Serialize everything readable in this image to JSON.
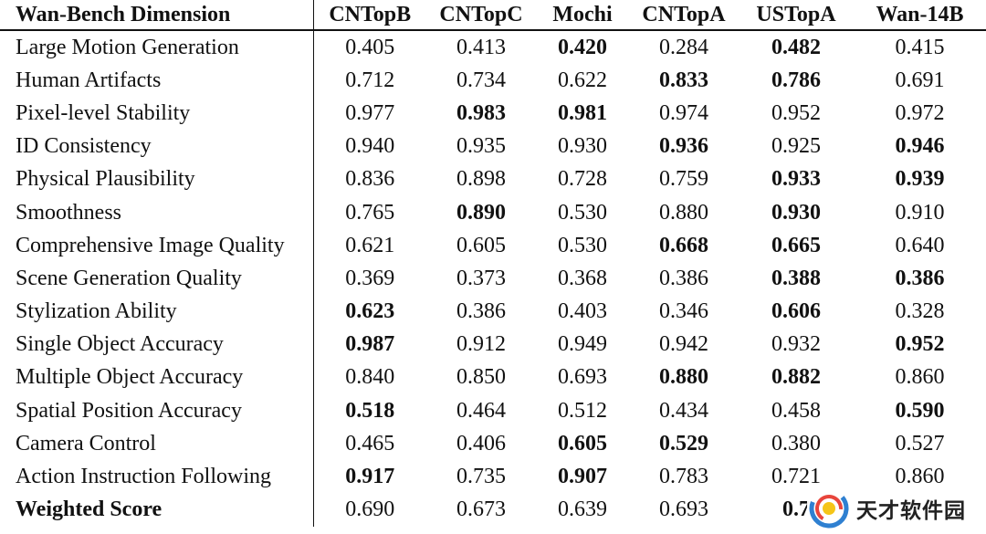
{
  "table": {
    "headers": [
      "Wan-Bench Dimension",
      "CNTopB",
      "CNTopC",
      "Mochi",
      "CNTopA",
      "USTopA",
      "Wan-14B"
    ],
    "rows": [
      {
        "dimension": "Large Motion Generation",
        "values": [
          "0.405",
          "0.413",
          "0.420",
          "0.284",
          "0.482",
          "0.415"
        ],
        "bold": [
          false,
          false,
          true,
          false,
          true,
          false
        ]
      },
      {
        "dimension": "Human Artifacts",
        "values": [
          "0.712",
          "0.734",
          "0.622",
          "0.833",
          "0.786",
          "0.691"
        ],
        "bold": [
          false,
          false,
          false,
          true,
          true,
          false
        ]
      },
      {
        "dimension": "Pixel-level Stability",
        "values": [
          "0.977",
          "0.983",
          "0.981",
          "0.974",
          "0.952",
          "0.972"
        ],
        "bold": [
          false,
          true,
          true,
          false,
          false,
          false
        ]
      },
      {
        "dimension": "ID Consistency",
        "values": [
          "0.940",
          "0.935",
          "0.930",
          "0.936",
          "0.925",
          "0.946"
        ],
        "bold": [
          false,
          false,
          false,
          true,
          false,
          true
        ]
      },
      {
        "dimension": "Physical Plausibility",
        "values": [
          "0.836",
          "0.898",
          "0.728",
          "0.759",
          "0.933",
          "0.939"
        ],
        "bold": [
          false,
          false,
          false,
          false,
          true,
          true
        ]
      },
      {
        "dimension": "Smoothness",
        "values": [
          "0.765",
          "0.890",
          "0.530",
          "0.880",
          "0.930",
          "0.910"
        ],
        "bold": [
          false,
          true,
          false,
          false,
          true,
          false
        ]
      },
      {
        "dimension": "Comprehensive Image Quality",
        "values": [
          "0.621",
          "0.605",
          "0.530",
          "0.668",
          "0.665",
          "0.640"
        ],
        "bold": [
          false,
          false,
          false,
          true,
          true,
          false
        ]
      },
      {
        "dimension": "Scene Generation Quality",
        "values": [
          "0.369",
          "0.373",
          "0.368",
          "0.386",
          "0.388",
          "0.386"
        ],
        "bold": [
          false,
          false,
          false,
          false,
          true,
          true
        ]
      },
      {
        "dimension": "Stylization Ability",
        "values": [
          "0.623",
          "0.386",
          "0.403",
          "0.346",
          "0.606",
          "0.328"
        ],
        "bold": [
          true,
          false,
          false,
          false,
          true,
          false
        ]
      },
      {
        "dimension": "Single Object Accuracy",
        "values": [
          "0.987",
          "0.912",
          "0.949",
          "0.942",
          "0.932",
          "0.952"
        ],
        "bold": [
          true,
          false,
          false,
          false,
          false,
          true
        ]
      },
      {
        "dimension": "Multiple Object Accuracy",
        "values": [
          "0.840",
          "0.850",
          "0.693",
          "0.880",
          "0.882",
          "0.860"
        ],
        "bold": [
          false,
          false,
          false,
          true,
          true,
          false
        ]
      },
      {
        "dimension": "Spatial Position Accuracy",
        "values": [
          "0.518",
          "0.464",
          "0.512",
          "0.434",
          "0.458",
          "0.590"
        ],
        "bold": [
          true,
          false,
          false,
          false,
          false,
          true
        ]
      },
      {
        "dimension": "Camera Control",
        "values": [
          "0.465",
          "0.406",
          "0.605",
          "0.529",
          "0.380",
          "0.527"
        ],
        "bold": [
          false,
          false,
          true,
          true,
          false,
          false
        ]
      },
      {
        "dimension": "Action Instruction Following",
        "values": [
          "0.917",
          "0.735",
          "0.907",
          "0.783",
          "0.721",
          "0.860"
        ],
        "bold": [
          true,
          false,
          true,
          false,
          false,
          false
        ]
      },
      {
        "dimension": "Weighted Score",
        "values": [
          "0.690",
          "0.673",
          "0.639",
          "0.693",
          "0.7",
          ""
        ],
        "bold": [
          false,
          false,
          false,
          false,
          true,
          false
        ]
      }
    ]
  },
  "watermark": {
    "text": "天才软件园",
    "logo": "swirl-logo-icon",
    "colors": {
      "ring_blue": "#2f80d1",
      "ring_red": "#e8453c",
      "core_yellow": "#f5c518"
    }
  }
}
